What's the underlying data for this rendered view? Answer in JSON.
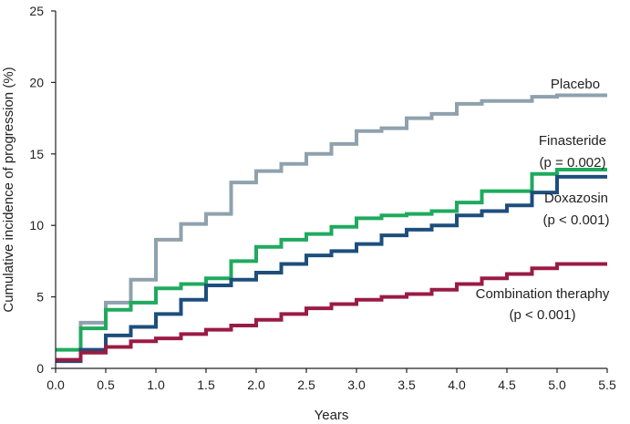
{
  "chart_data": {
    "type": "line",
    "step": true,
    "title": "",
    "xlabel": "Years",
    "ylabel": "Cumulative incidence of progression (%)",
    "xlim": [
      0,
      5.5
    ],
    "ylim": [
      0,
      25
    ],
    "xticks": [
      "0.0",
      "0.5",
      "1.0",
      "1.5",
      "2.0",
      "2.5",
      "3.0",
      "3.5",
      "4.0",
      "4.5",
      "5.0",
      "5.5"
    ],
    "yticks": [
      "0",
      "5",
      "10",
      "15",
      "20",
      "25"
    ],
    "grid": false,
    "legend": "direct labels at right end of each curve",
    "series": [
      {
        "name": "Placebo",
        "annotation": "",
        "color": "#8fa1ad",
        "x": [
          0,
          0.25,
          0.5,
          0.75,
          1.0,
          1.25,
          1.5,
          1.75,
          2.0,
          2.25,
          2.5,
          2.75,
          3.0,
          3.25,
          3.5,
          3.75,
          4.0,
          4.25,
          4.75,
          5.0,
          5.5
        ],
        "y": [
          0.6,
          3.2,
          4.6,
          6.2,
          9.0,
          10.1,
          10.8,
          13.0,
          13.8,
          14.3,
          15.0,
          15.7,
          16.6,
          16.8,
          17.5,
          17.8,
          18.5,
          18.7,
          19.0,
          19.1,
          19.1
        ]
      },
      {
        "name": "Finasteride",
        "annotation": "(p = 0.002)",
        "color": "#1faa5e",
        "x": [
          0,
          0.25,
          0.5,
          0.75,
          1.0,
          1.25,
          1.5,
          1.75,
          2.0,
          2.25,
          2.5,
          2.75,
          3.0,
          3.25,
          3.5,
          3.75,
          4.0,
          4.25,
          4.75,
          5.0,
          5.5
        ],
        "y": [
          1.3,
          2.8,
          4.1,
          4.6,
          5.6,
          5.9,
          6.3,
          7.5,
          8.5,
          9.0,
          9.4,
          9.9,
          10.5,
          10.7,
          10.8,
          11.0,
          11.6,
          12.4,
          13.6,
          13.9,
          13.9
        ]
      },
      {
        "name": "Doxazosin",
        "annotation": "(p < 0.001)",
        "color": "#1d4e7c",
        "x": [
          0,
          0.25,
          0.5,
          0.75,
          1.0,
          1.25,
          1.5,
          1.75,
          2.0,
          2.25,
          2.5,
          2.75,
          3.0,
          3.25,
          3.5,
          3.75,
          4.0,
          4.25,
          4.5,
          4.75,
          5.0,
          5.5
        ],
        "y": [
          0.5,
          1.3,
          2.3,
          2.9,
          3.8,
          4.8,
          5.8,
          6.2,
          6.7,
          7.3,
          7.9,
          8.2,
          8.7,
          9.3,
          9.7,
          10.0,
          10.7,
          11.0,
          11.4,
          12.3,
          13.4,
          13.4
        ]
      },
      {
        "name": "Combination theraphy",
        "annotation": "(p < 0.001)",
        "color": "#9a1b45",
        "x": [
          0,
          0.25,
          0.5,
          0.75,
          1.0,
          1.25,
          1.5,
          1.75,
          2.0,
          2.25,
          2.5,
          2.75,
          3.0,
          3.25,
          3.5,
          3.75,
          4.0,
          4.25,
          4.5,
          4.75,
          5.0,
          5.5
        ],
        "y": [
          0.6,
          1.1,
          1.5,
          1.9,
          2.1,
          2.4,
          2.7,
          3.0,
          3.4,
          3.8,
          4.2,
          4.5,
          4.8,
          5.0,
          5.2,
          5.5,
          5.9,
          6.3,
          6.6,
          7.0,
          7.3,
          7.3
        ]
      }
    ]
  }
}
